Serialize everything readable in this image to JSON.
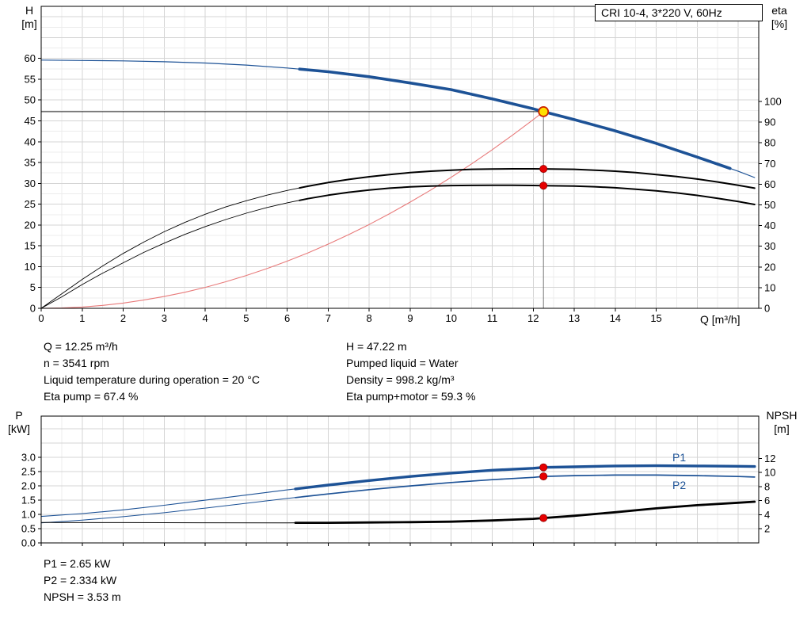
{
  "pump_title": "CRI 10-4, 3*220 V, 60Hz",
  "axis_titles": {
    "top_left_1": "H",
    "top_left_2": "[m]",
    "top_right_1": "eta",
    "top_right_2": "[%]",
    "top_x": "Q [m³/h]",
    "bottom_left_1": "P",
    "bottom_left_2": "[kW]",
    "bottom_right_1": "NPSH",
    "bottom_right_2": "[m]"
  },
  "operating_text": {
    "left": [
      "Q = 12.25 m³/h",
      "n = 3541 rpm",
      "Liquid temperature during operation = 20 °C",
      "Eta pump = 67.4 %"
    ],
    "right": [
      "H = 47.22 m",
      "Pumped liquid = Water",
      "Density = 998.2 kg/m³",
      "Eta pump+motor = 59.3 %"
    ]
  },
  "result_text": [
    "P1 = 2.65 kW",
    "P2 = 2.334 kW",
    "NPSH = 3.53 m"
  ],
  "colors": {
    "curve_blue": "#1d5296",
    "system_red": "#e87a7a",
    "dot_red": "#e60000",
    "duty_fill": "#ffe000",
    "duty_ring": "#cc2200",
    "grid_minor": "#ececec",
    "grid_major": "#d4d4d4"
  },
  "chart_data": [
    {
      "type": "line",
      "title": "CRI 10-4, 3*220 V, 60Hz",
      "x_axis": {
        "label": "Q [m³/h]",
        "min": 0,
        "max": 17.5,
        "show_tick_labels": true,
        "ticks": [
          "0",
          "1",
          "2",
          "3",
          "4",
          "5",
          "6",
          "7",
          "8",
          "9",
          "10",
          "11",
          "12",
          "13",
          "14",
          "15"
        ]
      },
      "y_left": {
        "label": "H [m]",
        "min": 0,
        "max": 72.5,
        "ticks": [
          "0",
          "5",
          "10",
          "15",
          "20",
          "25",
          "30",
          "35",
          "40",
          "45",
          "50",
          "55",
          "60"
        ]
      },
      "y_right": {
        "label": "eta [%]",
        "min": 0,
        "max": 146,
        "ticks": [
          "0",
          "10",
          "20",
          "30",
          "40",
          "50",
          "60",
          "70",
          "80",
          "90",
          "100"
        ]
      },
      "grid": {
        "v_step": 0.5,
        "v_major": 1,
        "h_step": 2.5,
        "h_major": 5
      },
      "crosshair": true,
      "duty_point": {
        "q": 12.25,
        "h": 47.22
      },
      "series": [
        {
          "name": "system-curve",
          "axis": "left",
          "color": "#e87a7a",
          "thin_width": 1.1,
          "thick_width": 1.1,
          "thick_range": null,
          "points": [
            [
              0,
              0
            ],
            [
              0.5,
              0.08
            ],
            [
              1,
              0.31
            ],
            [
              1.5,
              0.71
            ],
            [
              2,
              1.26
            ],
            [
              2.5,
              1.97
            ],
            [
              3,
              2.83
            ],
            [
              3.5,
              3.85
            ],
            [
              4,
              5.03
            ],
            [
              4.5,
              6.37
            ],
            [
              5,
              7.87
            ],
            [
              5.5,
              9.52
            ],
            [
              6,
              11.33
            ],
            [
              6.5,
              13.29
            ],
            [
              7,
              15.42
            ],
            [
              7.5,
              17.7
            ],
            [
              8,
              20.14
            ],
            [
              8.5,
              22.73
            ],
            [
              9,
              25.49
            ],
            [
              9.5,
              28.4
            ],
            [
              10,
              31.47
            ],
            [
              10.5,
              34.69
            ],
            [
              11,
              38.07
            ],
            [
              11.5,
              41.61
            ],
            [
              12,
              45.31
            ],
            [
              12.25,
              47.22
            ]
          ]
        },
        {
          "name": "eta-pump-motor-curve",
          "axis": "right",
          "color": "#000000",
          "thin_width": 0.9,
          "thick_width": 2,
          "thick_range": [
            6.3,
            17.4
          ],
          "points": [
            [
              0,
              0
            ],
            [
              0.5,
              5.5
            ],
            [
              1,
              11.5
            ],
            [
              1.5,
              17
            ],
            [
              2,
              22
            ],
            [
              2.5,
              27
            ],
            [
              3,
              31.5
            ],
            [
              3.5,
              35.7
            ],
            [
              4,
              39.5
            ],
            [
              4.5,
              42.9
            ],
            [
              5,
              46
            ],
            [
              5.5,
              48.7
            ],
            [
              6,
              51
            ],
            [
              6.5,
              53
            ],
            [
              7,
              54.7
            ],
            [
              7.5,
              56.1
            ],
            [
              8,
              57.2
            ],
            [
              8.5,
              58.1
            ],
            [
              9,
              58.7
            ],
            [
              9.5,
              59.1
            ],
            [
              10,
              59.35
            ],
            [
              10.5,
              59.45
            ],
            [
              11,
              59.5
            ],
            [
              11.5,
              59.5
            ],
            [
              12,
              59.4
            ],
            [
              12.25,
              59.3
            ],
            [
              13,
              59.1
            ],
            [
              13.5,
              58.8
            ],
            [
              14,
              58.3
            ],
            [
              14.5,
              57.6
            ],
            [
              15,
              56.8
            ],
            [
              15.5,
              55.8
            ],
            [
              16,
              54.6
            ],
            [
              16.5,
              53.2
            ],
            [
              17,
              51.6
            ],
            [
              17.4,
              50.2
            ]
          ]
        },
        {
          "name": "eta-pump-curve",
          "axis": "right",
          "color": "#000000",
          "thin_width": 0.9,
          "thick_width": 2,
          "thick_range": [
            6.3,
            17.4
          ],
          "points": [
            [
              0,
              0
            ],
            [
              0.5,
              7
            ],
            [
              1,
              14
            ],
            [
              1.5,
              20.5
            ],
            [
              2,
              26.5
            ],
            [
              2.5,
              32
            ],
            [
              3,
              37
            ],
            [
              3.5,
              41.5
            ],
            [
              4,
              45.5
            ],
            [
              4.5,
              49
            ],
            [
              5,
              52
            ],
            [
              5.5,
              54.7
            ],
            [
              6,
              57
            ],
            [
              6.5,
              59
            ],
            [
              7,
              60.8
            ],
            [
              7.5,
              62.3
            ],
            [
              8,
              63.6
            ],
            [
              8.5,
              64.7
            ],
            [
              9,
              65.6
            ],
            [
              9.5,
              66.3
            ],
            [
              10,
              66.8
            ],
            [
              10.5,
              67.2
            ],
            [
              11,
              67.35
            ],
            [
              11.5,
              67.45
            ],
            [
              12,
              67.45
            ],
            [
              12.25,
              67.4
            ],
            [
              13,
              67.2
            ],
            [
              13.5,
              66.8
            ],
            [
              14,
              66.3
            ],
            [
              14.5,
              65.6
            ],
            [
              15,
              64.7
            ],
            [
              15.5,
              63.7
            ],
            [
              16,
              62.5
            ],
            [
              16.5,
              61.1
            ],
            [
              17,
              59.5
            ],
            [
              17.4,
              58.1
            ]
          ]
        },
        {
          "name": "pump-curve",
          "axis": "left",
          "color": "#1d5296",
          "thin_width": 1.2,
          "thick_width": 3.6,
          "thick_range": [
            6.3,
            16.8
          ],
          "points": [
            [
              0,
              59.6
            ],
            [
              1,
              59.5
            ],
            [
              2,
              59.4
            ],
            [
              3,
              59.2
            ],
            [
              4,
              58.9
            ],
            [
              5,
              58.4
            ],
            [
              6,
              57.7
            ],
            [
              7,
              56.8
            ],
            [
              8,
              55.6
            ],
            [
              9,
              54.1
            ],
            [
              10,
              52.5
            ],
            [
              11,
              50.3
            ],
            [
              12,
              47.9
            ],
            [
              12.25,
              47.22
            ],
            [
              13,
              45.3
            ],
            [
              14,
              42.6
            ],
            [
              15,
              39.6
            ],
            [
              16,
              36.3
            ],
            [
              17,
              32.9
            ],
            [
              17.4,
              31.4
            ]
          ]
        }
      ],
      "dots": [
        {
          "name": "eta-pump-dot",
          "q": 12.25,
          "v": 67.4,
          "axis": "right"
        },
        {
          "name": "eta-pump-motor-dot",
          "q": 12.25,
          "v": 59.3,
          "axis": "right"
        }
      ]
    },
    {
      "type": "line",
      "x_axis": {
        "label": "",
        "min": 0,
        "max": 17.5,
        "show_tick_labels": false,
        "ticks": [
          "0",
          "1",
          "2",
          "3",
          "4",
          "5",
          "6",
          "7",
          "8",
          "9",
          "10",
          "11",
          "12",
          "13",
          "14",
          "15"
        ]
      },
      "y_left": {
        "label": "P [kW]",
        "min": 0,
        "max": 4.45,
        "ticks": [
          "0.0",
          "0.5",
          "1.0",
          "1.5",
          "2.0",
          "2.5",
          "3.0"
        ]
      },
      "y_right": {
        "label": "NPSH [m]",
        "min": 0,
        "max": 18,
        "ticks": [
          "2",
          "4",
          "6",
          "8",
          "10",
          "12"
        ]
      },
      "grid": {
        "v_step": 0.5,
        "v_major": 1,
        "h_step": 0.5,
        "h_major": 0.5
      },
      "crosshair": false,
      "duty_point": null,
      "series": [
        {
          "name": "p2-curve",
          "axis": "left",
          "color": "#1d5296",
          "thin_width": 1,
          "thick_width": 1.7,
          "thick_range": [
            6.2,
            17.4
          ],
          "points": [
            [
              0,
              0.7
            ],
            [
              1,
              0.8
            ],
            [
              2,
              0.92
            ],
            [
              3,
              1.06
            ],
            [
              4,
              1.22
            ],
            [
              5,
              1.39
            ],
            [
              6,
              1.56
            ],
            [
              7,
              1.72
            ],
            [
              8,
              1.87
            ],
            [
              9,
              2.0
            ],
            [
              10,
              2.12
            ],
            [
              11,
              2.22
            ],
            [
              12,
              2.3
            ],
            [
              12.25,
              2.334
            ],
            [
              13,
              2.36
            ],
            [
              14,
              2.38
            ],
            [
              15,
              2.38
            ],
            [
              16,
              2.36
            ],
            [
              17,
              2.33
            ],
            [
              17.4,
              2.31
            ]
          ]
        },
        {
          "name": "p1-curve",
          "axis": "left",
          "color": "#1d5296",
          "thin_width": 1.1,
          "thick_width": 3.4,
          "thick_range": [
            6.2,
            17.4
          ],
          "points": [
            [
              0,
              0.93
            ],
            [
              1,
              1.03
            ],
            [
              2,
              1.16
            ],
            [
              3,
              1.32
            ],
            [
              4,
              1.5
            ],
            [
              5,
              1.68
            ],
            [
              6,
              1.86
            ],
            [
              7,
              2.03
            ],
            [
              8,
              2.19
            ],
            [
              9,
              2.33
            ],
            [
              10,
              2.45
            ],
            [
              11,
              2.55
            ],
            [
              12,
              2.62
            ],
            [
              12.25,
              2.65
            ],
            [
              13,
              2.67
            ],
            [
              14,
              2.7
            ],
            [
              15,
              2.71
            ],
            [
              16,
              2.7
            ],
            [
              17,
              2.69
            ],
            [
              17.4,
              2.68
            ]
          ]
        },
        {
          "name": "npsh-curve",
          "axis": "right",
          "color": "#000000",
          "thin_width": 1,
          "thick_width": 2.8,
          "thick_range": [
            6.2,
            17.4
          ],
          "points": [
            [
              0,
              2.9
            ],
            [
              2,
              2.88
            ],
            [
              4,
              2.86
            ],
            [
              6,
              2.85
            ],
            [
              7,
              2.86
            ],
            [
              8,
              2.9
            ],
            [
              9,
              2.95
            ],
            [
              10,
              3.02
            ],
            [
              11,
              3.18
            ],
            [
              12,
              3.42
            ],
            [
              12.25,
              3.53
            ],
            [
              13,
              3.85
            ],
            [
              14,
              4.35
            ],
            [
              15,
              4.9
            ],
            [
              16,
              5.35
            ],
            [
              17,
              5.7
            ],
            [
              17.4,
              5.85
            ]
          ]
        }
      ],
      "annotations": [
        {
          "text": "P1",
          "q": 15.4,
          "v": 2.97
        },
        {
          "text": "P2",
          "q": 15.4,
          "v": 2.0
        }
      ],
      "dots": [
        {
          "name": "p1-dot",
          "q": 12.25,
          "v": 2.65,
          "axis": "left"
        },
        {
          "name": "p2-dot",
          "q": 12.25,
          "v": 2.334,
          "axis": "left"
        },
        {
          "name": "npsh-dot",
          "q": 12.25,
          "v": 3.53,
          "axis": "right"
        }
      ]
    }
  ]
}
